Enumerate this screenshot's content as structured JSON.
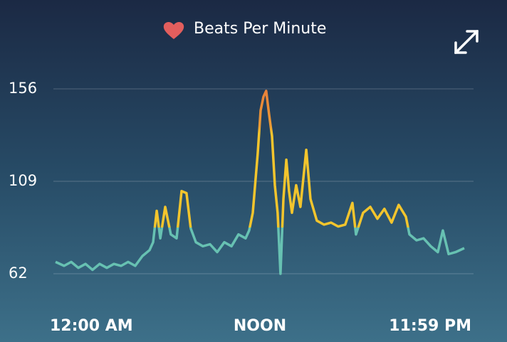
{
  "chart_data": {
    "type": "line",
    "x": [
      0,
      0.5,
      0.92,
      1.34,
      1.76,
      2.17,
      2.59,
      3.01,
      3.43,
      3.85,
      4.26,
      4.68,
      5.1,
      5.52,
      5.73,
      5.94,
      6.15,
      6.44,
      6.77,
      7.11,
      7.4,
      7.69,
      7.94,
      8.24,
      8.65,
      9.07,
      9.49,
      9.91,
      10.33,
      10.74,
      11.16,
      11.37,
      11.58,
      11.87,
      12.04,
      12.21,
      12.37,
      12.54,
      12.71,
      12.88,
      13.04,
      13.21,
      13.38,
      13.55,
      13.71,
      13.88,
      14.13,
      14.38,
      14.72,
      14.97,
      15.34,
      15.76,
      16.18,
      16.6,
      17.01,
      17.43,
      17.64,
      18.06,
      18.48,
      18.9,
      19.31,
      19.73,
      20.15,
      20.57,
      20.78,
      21.2,
      21.61,
      22.03,
      22.45,
      22.74,
      23.08,
      23.49,
      24
    ],
    "series": [
      {
        "name": "Beats Per Minute",
        "values": [
          68,
          66,
          68,
          65,
          67,
          64,
          67,
          65,
          67,
          66,
          68,
          66,
          71,
          74,
          78,
          94,
          80,
          96,
          82,
          80,
          104,
          103,
          85,
          78,
          76,
          77,
          73,
          78,
          76,
          82,
          80,
          84,
          93,
          123,
          145,
          152,
          155,
          143,
          132,
          107,
          93,
          62,
          100,
          120,
          104,
          93,
          107,
          96,
          125,
          100,
          89,
          87,
          88,
          86,
          87,
          98,
          82,
          93,
          96,
          90,
          95,
          88,
          97,
          91,
          82,
          79,
          80,
          76,
          73,
          84,
          72,
          73,
          75
        ]
      }
    ],
    "xlim": [
      0,
      24
    ],
    "xticks": [
      {
        "value": 0,
        "label": "12:00 AM"
      },
      {
        "value": 12,
        "label": "NOON"
      },
      {
        "value": 23.98,
        "label": "11:59 PM"
      }
    ],
    "ylim": [
      62,
      156
    ],
    "yticks": [
      62,
      109,
      156
    ],
    "grid": true
  }
}
